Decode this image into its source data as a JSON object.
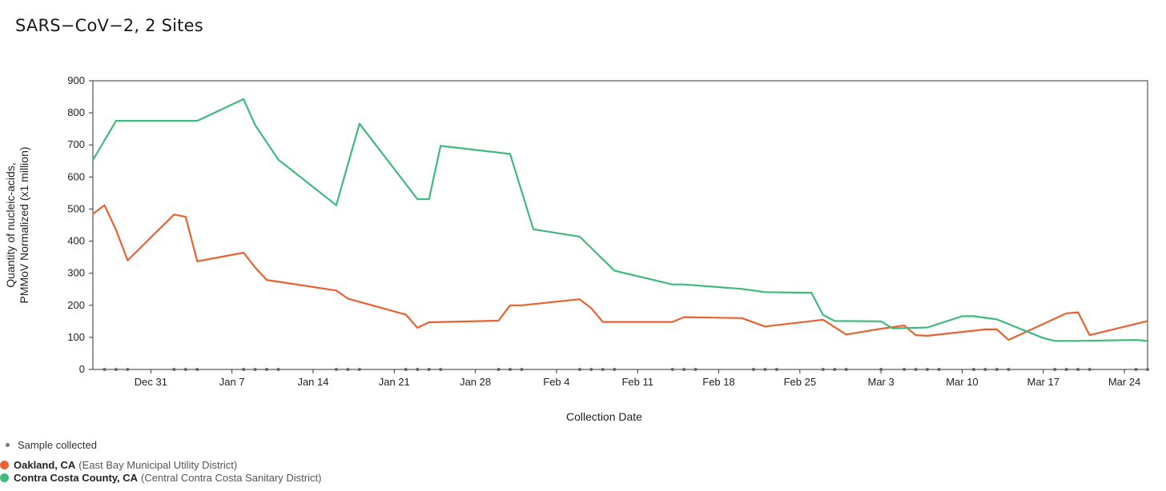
{
  "title": "SARS−CoV−2, 2 Sites",
  "chart_data": {
    "type": "line",
    "title": "SARS−CoV−2, 2 Sites",
    "xlabel": "Collection Date",
    "ylabel_line1": "Quantity of nucleic-acids,",
    "ylabel_line2": "PMMoV Normalized (x1 million)",
    "ylim": [
      0,
      900
    ],
    "yticks": [
      0,
      100,
      200,
      300,
      400,
      500,
      600,
      700,
      800,
      900
    ],
    "xlim": [
      "2023-12-26",
      "2024-03-26"
    ],
    "xticks": [
      {
        "date": "2023-12-31",
        "label": "Dec 31"
      },
      {
        "date": "2024-01-07",
        "label": "Jan 7"
      },
      {
        "date": "2024-01-14",
        "label": "Jan 14"
      },
      {
        "date": "2024-01-21",
        "label": "Jan 21"
      },
      {
        "date": "2024-01-28",
        "label": "Jan 28"
      },
      {
        "date": "2024-02-04",
        "label": "Feb 4"
      },
      {
        "date": "2024-02-11",
        "label": "Feb 11"
      },
      {
        "date": "2024-02-18",
        "label": "Feb 18"
      },
      {
        "date": "2024-02-25",
        "label": "Feb 25"
      },
      {
        "date": "2024-03-03",
        "label": "Mar 3"
      },
      {
        "date": "2024-03-10",
        "label": "Mar 10"
      },
      {
        "date": "2024-03-17",
        "label": "Mar 17"
      },
      {
        "date": "2024-03-24",
        "label": "Mar 24"
      }
    ],
    "grid": false,
    "series": [
      {
        "name": "Oakland, CA",
        "detail": "(East Bay Municipal Utility District)",
        "color": "#e8622f",
        "points": [
          [
            "2023-12-26",
            485
          ],
          [
            "2023-12-27",
            512
          ],
          [
            "2023-12-28",
            435
          ],
          [
            "2023-12-29",
            340
          ],
          [
            "2024-01-02",
            483
          ],
          [
            "2024-01-03",
            476
          ],
          [
            "2024-01-04",
            337
          ],
          [
            "2024-01-08",
            364
          ],
          [
            "2024-01-09",
            318
          ],
          [
            "2024-01-10",
            279
          ],
          [
            "2024-01-16",
            246
          ],
          [
            "2024-01-17",
            221
          ],
          [
            "2024-01-22",
            171
          ],
          [
            "2024-01-23",
            130
          ],
          [
            "2024-01-24",
            147
          ],
          [
            "2024-01-30",
            152
          ],
          [
            "2024-01-31",
            200
          ],
          [
            "2024-02-01",
            200
          ],
          [
            "2024-02-06",
            219
          ],
          [
            "2024-02-07",
            191
          ],
          [
            "2024-02-08",
            148
          ],
          [
            "2024-02-14",
            148
          ],
          [
            "2024-02-15",
            163
          ],
          [
            "2024-02-20",
            160
          ],
          [
            "2024-02-22",
            134
          ],
          [
            "2024-02-27",
            155
          ],
          [
            "2024-02-29",
            109
          ],
          [
            "2024-03-03",
            127
          ],
          [
            "2024-03-05",
            137
          ],
          [
            "2024-03-06",
            107
          ],
          [
            "2024-03-07",
            105
          ],
          [
            "2024-03-11",
            121
          ],
          [
            "2024-03-12",
            125
          ],
          [
            "2024-03-13",
            125
          ],
          [
            "2024-03-14",
            92
          ],
          [
            "2024-03-19",
            175
          ],
          [
            "2024-03-20",
            178
          ],
          [
            "2024-03-21",
            107
          ],
          [
            "2024-03-26",
            151
          ]
        ]
      },
      {
        "name": "Contra Costa County, CA",
        "detail": "(Central Contra Costa Sanitary District)",
        "color": "#3dba7c",
        "points": [
          [
            "2023-12-26",
            653
          ],
          [
            "2023-12-28",
            775
          ],
          [
            "2024-01-04",
            775
          ],
          [
            "2024-01-08",
            843
          ],
          [
            "2024-01-09",
            762
          ],
          [
            "2024-01-11",
            654
          ],
          [
            "2024-01-16",
            512
          ],
          [
            "2024-01-18",
            766
          ],
          [
            "2024-01-23",
            531
          ],
          [
            "2024-01-24",
            531
          ],
          [
            "2024-01-25",
            697
          ],
          [
            "2024-01-31",
            672
          ],
          [
            "2024-02-02",
            437
          ],
          [
            "2024-02-06",
            414
          ],
          [
            "2024-02-09",
            308
          ],
          [
            "2024-02-14",
            265
          ],
          [
            "2024-02-15",
            265
          ],
          [
            "2024-02-20",
            251
          ],
          [
            "2024-02-22",
            241
          ],
          [
            "2024-02-26",
            239
          ],
          [
            "2024-02-27",
            170
          ],
          [
            "2024-02-28",
            151
          ],
          [
            "2024-03-03",
            150
          ],
          [
            "2024-03-04",
            128
          ],
          [
            "2024-03-07",
            131
          ],
          [
            "2024-03-10",
            166
          ],
          [
            "2024-03-11",
            166
          ],
          [
            "2024-03-13",
            156
          ],
          [
            "2024-03-17",
            98
          ],
          [
            "2024-03-18",
            89
          ],
          [
            "2024-03-20",
            89
          ],
          [
            "2024-03-25",
            92
          ],
          [
            "2024-03-26",
            89
          ]
        ]
      }
    ],
    "samples": [
      "2023-12-27",
      "2023-12-28",
      "2023-12-29",
      "2024-01-02",
      "2024-01-03",
      "2024-01-04",
      "2024-01-08",
      "2024-01-09",
      "2024-01-10",
      "2024-01-11",
      "2024-01-16",
      "2024-01-17",
      "2024-01-18",
      "2024-01-22",
      "2024-01-23",
      "2024-01-24",
      "2024-01-25",
      "2024-01-30",
      "2024-01-31",
      "2024-02-01",
      "2024-02-06",
      "2024-02-07",
      "2024-02-08",
      "2024-02-09",
      "2024-02-14",
      "2024-02-15",
      "2024-02-16",
      "2024-02-21",
      "2024-02-22",
      "2024-02-23",
      "2024-02-27",
      "2024-02-28",
      "2024-02-29",
      "2024-03-03",
      "2024-03-05",
      "2024-03-06",
      "2024-03-07",
      "2024-03-08",
      "2024-03-11",
      "2024-03-12",
      "2024-03-13",
      "2024-03-14",
      "2024-03-18",
      "2024-03-19",
      "2024-03-20",
      "2024-03-21",
      "2024-03-25",
      "2024-03-26"
    ],
    "sample_color": "#666666"
  },
  "legend": {
    "sample_label": "Sample collected",
    "series": [
      {
        "name": "Oakland, CA",
        "detail": "(East Bay Municipal Utility District)",
        "color": "#e8622f"
      },
      {
        "name": "Contra Costa County, CA",
        "detail": "(Central Contra Costa Sanitary District)",
        "color": "#3dba7c"
      }
    ]
  }
}
